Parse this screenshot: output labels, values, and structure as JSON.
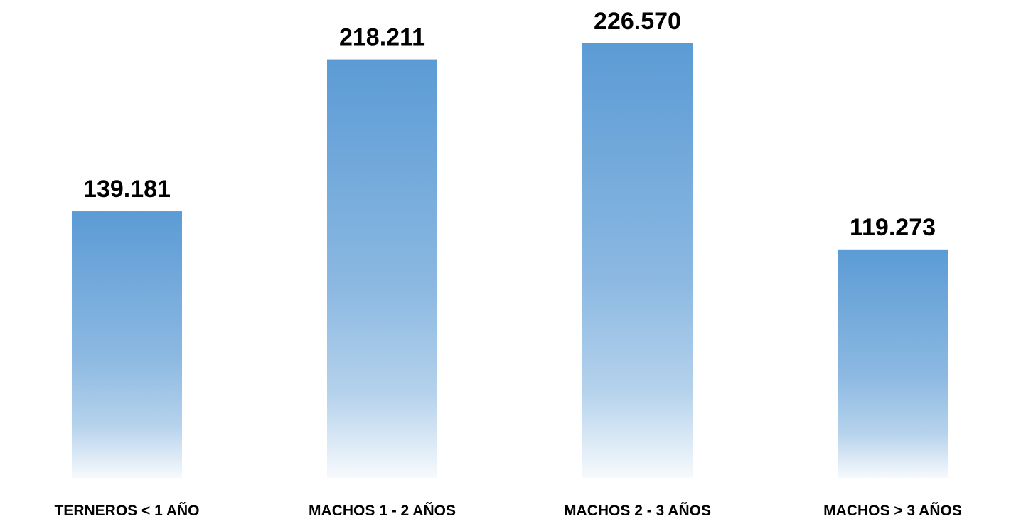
{
  "chart_data": {
    "type": "bar",
    "categories": [
      "TERNEROS < 1 AÑO",
      "MACHOS 1 - 2 AÑOS",
      "MACHOS 2 - 3 AÑOS",
      "MACHOS > 3 AÑOS"
    ],
    "values": [
      139181,
      218211,
      226570,
      119273
    ],
    "value_labels": [
      "139.181",
      "218.211",
      "226.570",
      "119.273"
    ],
    "color": "#5b9bd5"
  }
}
